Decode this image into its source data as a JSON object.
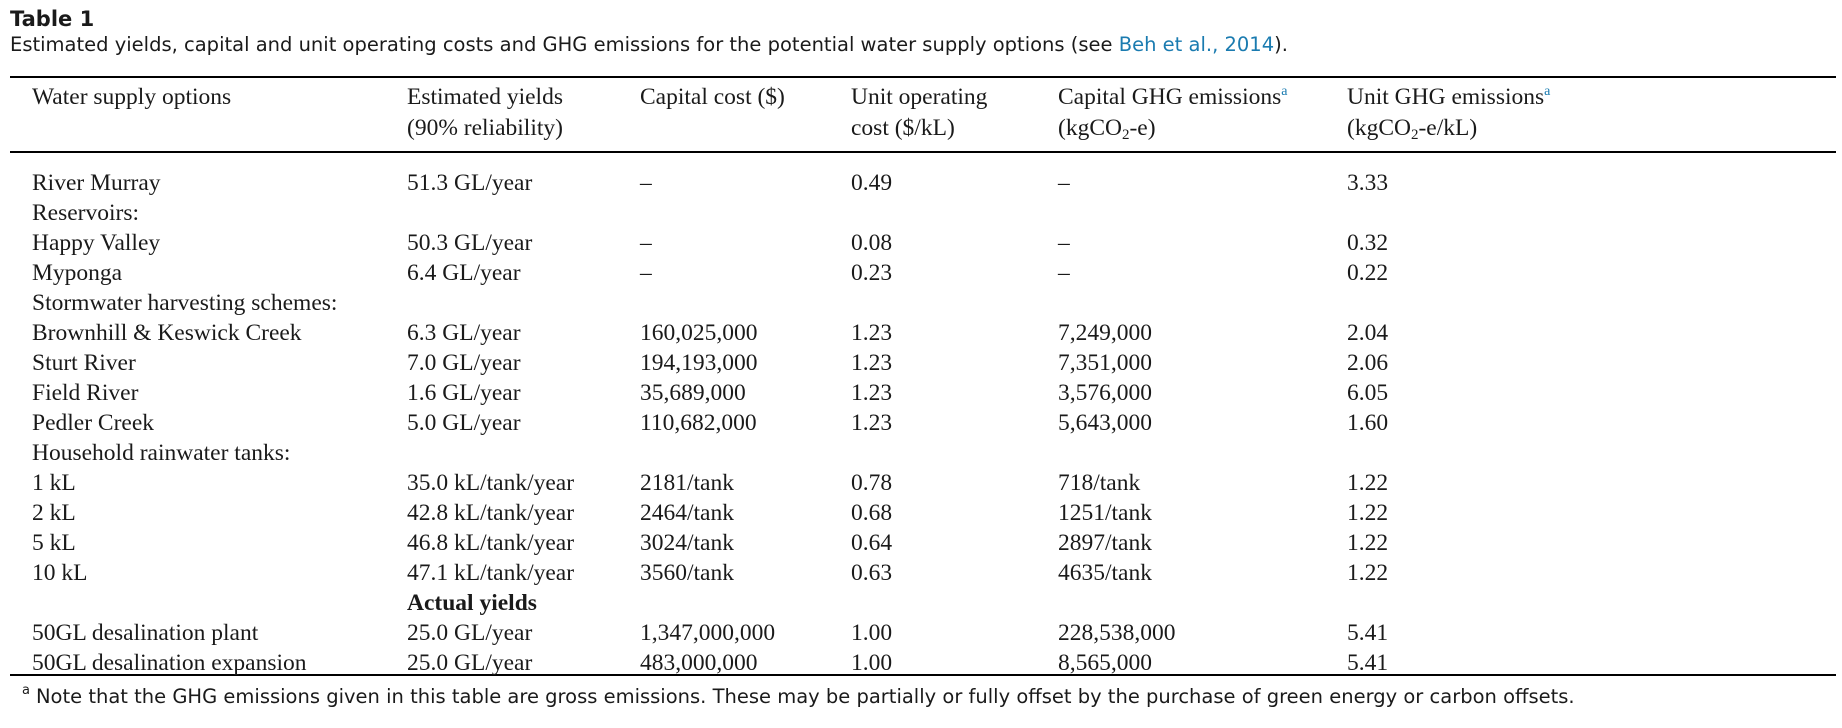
{
  "caption": {
    "label": "Table 1",
    "text_before": "Estimated yields, capital and unit operating costs and GHG emissions for the potential water supply options (see ",
    "link_text": "Beh et al., 2014",
    "text_after": ")."
  },
  "headers": {
    "col1": "Water supply options",
    "col2_line1": "Estimated yields",
    "col2_line2": "(90% reliability)",
    "col3": "Capital cost ($)",
    "col4_line1": "Unit operating",
    "col4_line2": "cost ($/kL)",
    "col5_line1": "Capital GHG emissions",
    "col5_line2_a": "(kgCO",
    "col5_line2_sub": "2",
    "col5_line2_b": "-e)",
    "col6_line1": "Unit GHG emissions",
    "col6_line2_a": "(kgCO",
    "col6_line2_sub": "2",
    "col6_line2_b": "-e/kL)",
    "note_marker": "a"
  },
  "rows": [
    {
      "option": "River Murray",
      "yield": "51.3 GL/year",
      "capital_cost": "–",
      "unit_cost": "0.49",
      "capital_ghg": "–",
      "unit_ghg": "3.33"
    },
    {
      "option": "Reservoirs:",
      "yield": "",
      "capital_cost": "",
      "unit_cost": "",
      "capital_ghg": "",
      "unit_ghg": ""
    },
    {
      "option": "Happy Valley",
      "yield": "50.3 GL/year",
      "capital_cost": "–",
      "unit_cost": "0.08",
      "capital_ghg": "–",
      "unit_ghg": "0.32"
    },
    {
      "option": "Myponga",
      "yield": "6.4 GL/year",
      "capital_cost": "–",
      "unit_cost": "0.23",
      "capital_ghg": "–",
      "unit_ghg": "0.22"
    },
    {
      "option": "Stormwater harvesting schemes:",
      "yield": "",
      "capital_cost": "",
      "unit_cost": "",
      "capital_ghg": "",
      "unit_ghg": ""
    },
    {
      "option": "Brownhill & Keswick Creek",
      "yield": "6.3 GL/year",
      "capital_cost": "160,025,000",
      "unit_cost": "1.23",
      "capital_ghg": "7,249,000",
      "unit_ghg": "2.04"
    },
    {
      "option": "Sturt River",
      "yield": "7.0 GL/year",
      "capital_cost": "194,193,000",
      "unit_cost": "1.23",
      "capital_ghg": "7,351,000",
      "unit_ghg": "2.06"
    },
    {
      "option": "Field River",
      "yield": "1.6 GL/year",
      "capital_cost": "35,689,000",
      "unit_cost": "1.23",
      "capital_ghg": "3,576,000",
      "unit_ghg": "6.05"
    },
    {
      "option": "Pedler Creek",
      "yield": "5.0 GL/year",
      "capital_cost": "110,682,000",
      "unit_cost": "1.23",
      "capital_ghg": "5,643,000",
      "unit_ghg": "1.60"
    },
    {
      "option": "Household rainwater tanks:",
      "yield": "",
      "capital_cost": "",
      "unit_cost": "",
      "capital_ghg": "",
      "unit_ghg": ""
    },
    {
      "option": "1 kL",
      "yield": "35.0 kL/tank/year",
      "capital_cost": "2181/tank",
      "unit_cost": "0.78",
      "capital_ghg": "718/tank",
      "unit_ghg": "1.22"
    },
    {
      "option": "2 kL",
      "yield": "42.8 kL/tank/year",
      "capital_cost": "2464/tank",
      "unit_cost": "0.68",
      "capital_ghg": "1251/tank",
      "unit_ghg": "1.22"
    },
    {
      "option": "5 kL",
      "yield": "46.8 kL/tank/year",
      "capital_cost": "3024/tank",
      "unit_cost": "0.64",
      "capital_ghg": "2897/tank",
      "unit_ghg": "1.22"
    },
    {
      "option": "10 kL",
      "yield": "47.1 kL/tank/year",
      "capital_cost": "3560/tank",
      "unit_cost": "0.63",
      "capital_ghg": "4635/tank",
      "unit_ghg": "1.22"
    },
    {
      "option": "",
      "yield": "Actual yields",
      "capital_cost": "",
      "unit_cost": "",
      "capital_ghg": "",
      "unit_ghg": "",
      "bold_yield": true
    },
    {
      "option": "50GL desalination plant",
      "yield": "25.0 GL/year",
      "capital_cost": "1,347,000,000",
      "unit_cost": "1.00",
      "capital_ghg": "228,538,000",
      "unit_ghg": "5.41"
    },
    {
      "option": "50GL desalination expansion",
      "yield": "25.0 GL/year",
      "capital_cost": "483,000,000",
      "unit_cost": "1.00",
      "capital_ghg": "8,565,000",
      "unit_ghg": "5.41"
    }
  ],
  "footnote": {
    "marker": "a",
    "text": "Note that the GHG emissions given in this table are gross emissions. These may be partially or fully offset by the purchase of green energy or carbon offsets."
  },
  "colors": {
    "link": "#1a7bb0",
    "text": "#1a1a1a",
    "rule": "#000000"
  }
}
